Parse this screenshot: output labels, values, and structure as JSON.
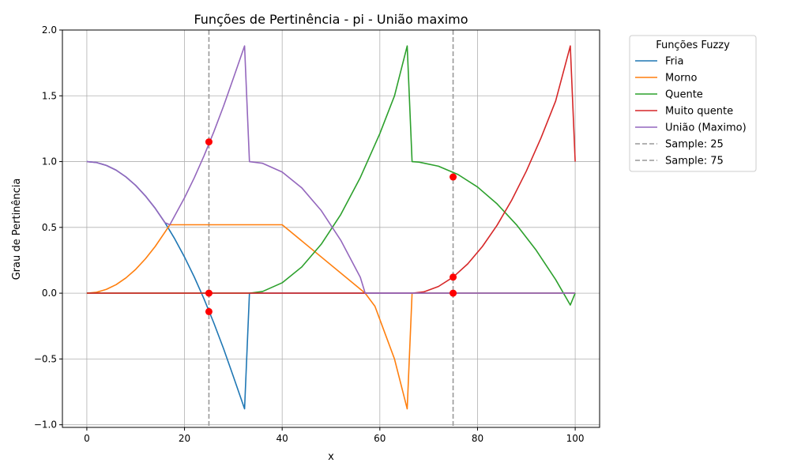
{
  "chart_data": {
    "type": "line",
    "title": "Funções de Pertinência - pi - União maximo",
    "xlabel": "x",
    "ylabel": "Grau de Pertinência",
    "xlim": [
      -5,
      105
    ],
    "ylim": [
      -1.02,
      2.0
    ],
    "x_ticks": [
      0,
      20,
      40,
      60,
      80,
      100
    ],
    "x_tick_labels": [
      "0",
      "20",
      "40",
      "60",
      "80",
      "100"
    ],
    "y_ticks": [
      -1.0,
      -0.5,
      0.0,
      0.5,
      1.0,
      1.5,
      2.0
    ],
    "y_tick_labels": [
      "−1.0",
      "−0.5",
      "0.0",
      "0.5",
      "1.0",
      "1.5",
      "2.0"
    ],
    "grid": true,
    "legend_title": "Funções Fuzzy",
    "legend_position": "outside-right",
    "series": [
      {
        "name": "Fria",
        "color": "#1f77b4",
        "style": "solid",
        "x": [
          0,
          2,
          4,
          6,
          8,
          10,
          12,
          14,
          16,
          18,
          20,
          22,
          24,
          26,
          28,
          30,
          32.3,
          33.3,
          40,
          60,
          80,
          100
        ],
        "y": [
          1.0,
          0.993,
          0.971,
          0.935,
          0.884,
          0.819,
          0.739,
          0.645,
          0.536,
          0.413,
          0.275,
          0.123,
          -0.044,
          -0.226,
          -0.422,
          -0.633,
          -0.879,
          0.0,
          0.0,
          0.0,
          0.0,
          0.0
        ]
      },
      {
        "name": "Morno",
        "color": "#ff7f0e",
        "style": "solid",
        "x": [
          0,
          2,
          4,
          6,
          8,
          10,
          12,
          14,
          16,
          17,
          20,
          40,
          57,
          59,
          61,
          63,
          65.6,
          66.6,
          80,
          100
        ],
        "y": [
          0.0,
          0.007,
          0.029,
          0.065,
          0.116,
          0.181,
          0.261,
          0.355,
          0.464,
          0.52,
          0.52,
          0.52,
          0.0,
          -0.1,
          -0.3,
          -0.5,
          -0.879,
          0.0,
          0.0,
          0.0
        ]
      },
      {
        "name": "Quente",
        "color": "#2ca02c",
        "style": "solid",
        "x": [
          0,
          20,
          33.3,
          36,
          40,
          44,
          48,
          52,
          56,
          60,
          63,
          65.6,
          66.6,
          68,
          72,
          76,
          80,
          84,
          88,
          92,
          96,
          99,
          100
        ],
        "y": [
          0.0,
          0.0,
          0.0,
          0.013,
          0.079,
          0.199,
          0.372,
          0.598,
          0.879,
          1.213,
          1.5,
          1.879,
          1.0,
          0.996,
          0.965,
          0.902,
          0.807,
          0.679,
          0.519,
          0.327,
          0.103,
          -0.09,
          0.0
        ]
      },
      {
        "name": "Muito quente",
        "color": "#d62728",
        "style": "solid",
        "x": [
          0,
          20,
          40,
          60,
          66.6,
          69,
          72,
          75,
          78,
          81,
          84,
          87,
          90,
          93,
          96,
          99,
          100
        ],
        "y": [
          0.0,
          0.0,
          0.0,
          0.0,
          0.0,
          0.01,
          0.051,
          0.122,
          0.223,
          0.355,
          0.516,
          0.707,
          0.928,
          1.18,
          1.461,
          1.879,
          1.0
        ]
      },
      {
        "name": "União (Maximo)",
        "color": "#9467bd",
        "style": "solid",
        "x": [
          0,
          2,
          4,
          6,
          8,
          10,
          12,
          14,
          16,
          17,
          20,
          22,
          24,
          26,
          28,
          30,
          32.3,
          33.3,
          36,
          40,
          44,
          48,
          52,
          56,
          57,
          60,
          80,
          100
        ],
        "y": [
          1.0,
          0.993,
          0.971,
          0.935,
          0.884,
          0.819,
          0.739,
          0.645,
          0.536,
          0.52,
          0.725,
          0.877,
          1.044,
          1.226,
          1.422,
          1.633,
          1.879,
          1.0,
          0.987,
          0.921,
          0.801,
          0.628,
          0.402,
          0.121,
          0.0,
          0.0,
          0.0,
          0.0
        ]
      },
      {
        "name": "Sample: 25",
        "color": "#999999",
        "style": "dashed",
        "vline_x": 25
      },
      {
        "name": "Sample: 75",
        "color": "#999999",
        "style": "dashed",
        "vline_x": 75
      }
    ],
    "markers": {
      "color": "#ff0000",
      "points": [
        {
          "x": 25,
          "y": 1.15
        },
        {
          "x": 25,
          "y": 0.0
        },
        {
          "x": 25,
          "y": -0.14
        },
        {
          "x": 75,
          "y": 0.883
        },
        {
          "x": 75,
          "y": 0.122
        },
        {
          "x": 75,
          "y": 0.0
        }
      ]
    }
  }
}
